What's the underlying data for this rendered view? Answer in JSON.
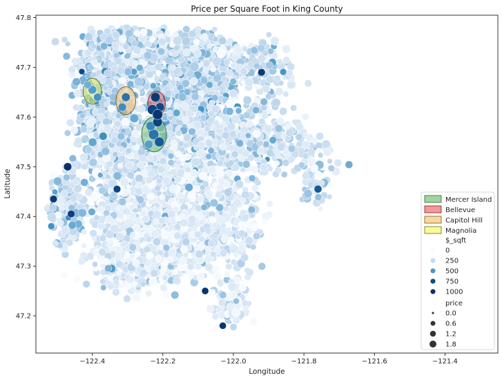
{
  "chart_data": {
    "type": "scatter",
    "title": "Price per Square Foot in King County",
    "xlabel": "Longitude",
    "ylabel": "Latitude",
    "xlim": [
      -122.56,
      -121.25
    ],
    "ylim": [
      47.125,
      47.805
    ],
    "xticks": [
      -122.4,
      -122.2,
      -122.0,
      -121.8,
      -121.6,
      -121.4
    ],
    "xtick_labels": [
      "−122.4",
      "−122.2",
      "−122.0",
      "−121.8",
      "−121.6",
      "−121.4"
    ],
    "yticks": [
      47.2,
      47.3,
      47.4,
      47.5,
      47.6,
      47.7,
      47.8
    ],
    "ytick_labels": [
      "47.2",
      "47.3",
      "47.4",
      "47.5",
      "47.6",
      "47.7",
      "47.8"
    ],
    "grid": false,
    "legend_position": "lower-right",
    "regions": [
      {
        "name": "Mercer Island",
        "lon": -122.225,
        "lat": 47.565,
        "rlon": 0.035,
        "rlat": 0.035,
        "fill": "#2ca02c",
        "stroke": "#2a6a2a",
        "fill_opacity": 0.35
      },
      {
        "name": "Bellevue",
        "lon": -122.218,
        "lat": 47.627,
        "rlon": 0.025,
        "rlat": 0.025,
        "fill": "#e41a1c",
        "stroke": "#8a1a1a",
        "fill_opacity": 0.35
      },
      {
        "name": "Capitol Hill",
        "lon": -122.305,
        "lat": 47.633,
        "rlon": 0.028,
        "rlat": 0.028,
        "fill": "#f5b041",
        "stroke": "#7a5a1a",
        "fill_opacity": 0.4
      },
      {
        "name": "Magnolia",
        "lon": -122.4,
        "lat": 47.652,
        "rlon": 0.026,
        "rlat": 0.026,
        "fill": "#f4f442",
        "stroke": "#6a6a1a",
        "fill_opacity": 0.45
      }
    ],
    "hue": {
      "title": "$_sqft",
      "levels": [
        0,
        250,
        500,
        750,
        1000
      ],
      "colors": [
        "#f7fbff",
        "#c6dbef",
        "#4a98c9",
        "#0b4b8a",
        "#08306b"
      ]
    },
    "size": {
      "title": "price",
      "levels": [
        0.0,
        0.6,
        1.2,
        1.8
      ],
      "labels": [
        "0.0",
        "0.6",
        "1.2",
        "1.8"
      ]
    },
    "clusters": [
      {
        "lon": -122.31,
        "lat": 47.715,
        "slon": 0.07,
        "slat": 0.04,
        "n": 900,
        "hue_mean": 230
      },
      {
        "lon": -122.09,
        "lat": 47.705,
        "slon": 0.07,
        "slat": 0.04,
        "n": 550,
        "hue_mean": 240
      },
      {
        "lon": -122.36,
        "lat": 47.615,
        "slon": 0.05,
        "slat": 0.05,
        "n": 500,
        "hue_mean": 290
      },
      {
        "lon": -122.13,
        "lat": 47.605,
        "slon": 0.08,
        "slat": 0.05,
        "n": 600,
        "hue_mean": 290
      },
      {
        "lon": -122.33,
        "lat": 47.535,
        "slon": 0.05,
        "slat": 0.04,
        "n": 400,
        "hue_mean": 230
      },
      {
        "lon": -122.2,
        "lat": 47.48,
        "slon": 0.07,
        "slat": 0.05,
        "n": 650,
        "hue_mean": 170
      },
      {
        "lon": -122.04,
        "lat": 47.55,
        "slon": 0.06,
        "slat": 0.04,
        "n": 400,
        "hue_mean": 210
      },
      {
        "lon": -122.27,
        "lat": 47.4,
        "slon": 0.08,
        "slat": 0.05,
        "n": 600,
        "hue_mean": 140
      },
      {
        "lon": -122.17,
        "lat": 47.35,
        "slon": 0.07,
        "slat": 0.04,
        "n": 450,
        "hue_mean": 130
      },
      {
        "lon": -122.28,
        "lat": 47.305,
        "slon": 0.08,
        "slat": 0.03,
        "n": 380,
        "hue_mean": 120
      },
      {
        "lon": -122.03,
        "lat": 47.39,
        "slon": 0.06,
        "slat": 0.05,
        "n": 350,
        "hue_mean": 140
      },
      {
        "lon": -122.0,
        "lat": 47.23,
        "slon": 0.03,
        "slat": 0.03,
        "n": 90,
        "hue_mean": 130
      },
      {
        "lon": -122.47,
        "lat": 47.42,
        "slon": 0.03,
        "slat": 0.05,
        "n": 160,
        "hue_mean": 230
      },
      {
        "lon": -121.91,
        "lat": 47.56,
        "slon": 0.06,
        "slat": 0.05,
        "n": 200,
        "hue_mean": 210
      },
      {
        "lon": -121.92,
        "lat": 47.7,
        "slon": 0.05,
        "slat": 0.04,
        "n": 130,
        "hue_mean": 200
      },
      {
        "lon": -122.22,
        "lat": 47.75,
        "slon": 0.1,
        "slat": 0.02,
        "n": 300,
        "hue_mean": 220
      },
      {
        "lon": -121.78,
        "lat": 47.52,
        "slon": 0.06,
        "slat": 0.03,
        "n": 60,
        "hue_mean": 180
      },
      {
        "lon": -121.77,
        "lat": 47.47,
        "slon": 0.03,
        "slat": 0.03,
        "n": 40,
        "hue_mean": 220
      }
    ],
    "highlight_points": [
      {
        "lon": -122.226,
        "lat": 47.565,
        "hue": 620,
        "price": 1.8
      },
      {
        "lon": -122.235,
        "lat": 47.582,
        "hue": 560,
        "price": 1.2
      },
      {
        "lon": -122.21,
        "lat": 47.55,
        "hue": 700,
        "price": 1.5
      },
      {
        "lon": -122.24,
        "lat": 47.545,
        "hue": 480,
        "price": 1.0
      },
      {
        "lon": -122.215,
        "lat": 47.59,
        "hue": 820,
        "price": 1.4
      },
      {
        "lon": -122.221,
        "lat": 47.64,
        "hue": 900,
        "price": 1.4
      },
      {
        "lon": -122.208,
        "lat": 47.62,
        "hue": 780,
        "price": 1.1
      },
      {
        "lon": -122.23,
        "lat": 47.615,
        "hue": 820,
        "price": 1.6
      },
      {
        "lon": -122.215,
        "lat": 47.605,
        "hue": 950,
        "price": 1.7
      },
      {
        "lon": -122.305,
        "lat": 47.64,
        "hue": 620,
        "price": 1.0
      },
      {
        "lon": -122.315,
        "lat": 47.62,
        "hue": 540,
        "price": 0.9
      },
      {
        "lon": -122.4,
        "lat": 47.655,
        "hue": 480,
        "price": 1.0
      },
      {
        "lon": -122.385,
        "lat": 47.64,
        "hue": 520,
        "price": 0.8
      },
      {
        "lon": -122.413,
        "lat": 47.665,
        "hue": 420,
        "price": 0.7
      },
      {
        "lon": -122.47,
        "lat": 47.5,
        "hue": 1000,
        "price": 0.8
      },
      {
        "lon": -122.51,
        "lat": 47.435,
        "hue": 900,
        "price": 0.6
      },
      {
        "lon": -121.92,
        "lat": 47.69,
        "hue": 900,
        "price": 0.6
      },
      {
        "lon": -122.03,
        "lat": 47.18,
        "hue": 950,
        "price": 0.5
      },
      {
        "lon": -122.08,
        "lat": 47.25,
        "hue": 950,
        "price": 0.5
      },
      {
        "lon": -121.76,
        "lat": 47.455,
        "hue": 700,
        "price": 0.7
      },
      {
        "lon": -122.33,
        "lat": 47.455,
        "hue": 800,
        "price": 0.6
      },
      {
        "lon": -122.46,
        "lat": 47.405,
        "hue": 860,
        "price": 0.6
      }
    ]
  }
}
